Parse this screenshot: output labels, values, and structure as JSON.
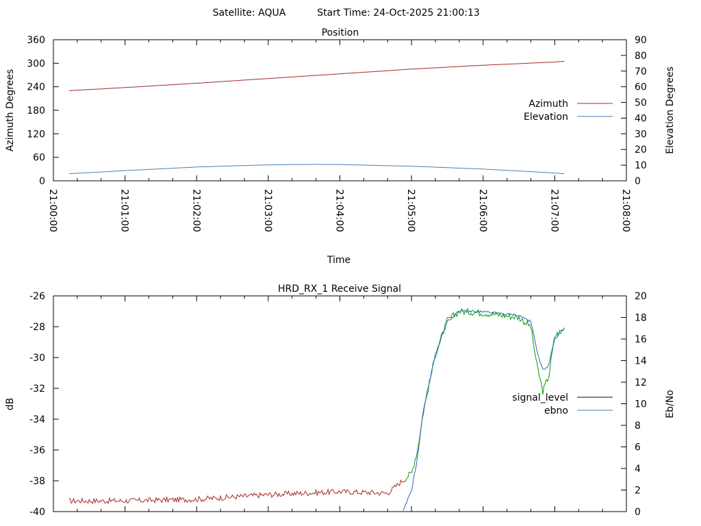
{
  "header": {
    "satellite_text": "Satellite: AQUA",
    "start_time_text": "Start Time: 24-Oct-2025 21:00:13"
  },
  "colors": {
    "azimuth": "#a52a2a",
    "elevation": "#4a7fb5",
    "signal_level_line": "#00a000",
    "ebno_line": "#3060c0",
    "signal_legend": "#000000",
    "ebno_legend": "#4a7fb5"
  },
  "chart_data": [
    {
      "type": "line",
      "title": "Position",
      "xlabel": "Time",
      "ylabel": "Azimuth Degrees",
      "y2label": "Elevation Degrees",
      "xlim": [
        "21:00:00",
        "21:08:00"
      ],
      "ylim": [
        0,
        360
      ],
      "y2lim": [
        0,
        90
      ],
      "x_ticks": [
        "21:00:00",
        "21:01:00",
        "21:02:00",
        "21:03:00",
        "21:04:00",
        "21:05:00",
        "21:06:00",
        "21:07:00",
        "21:08:00"
      ],
      "y_ticks": [
        "0",
        "60",
        "120",
        "180",
        "240",
        "300",
        "360"
      ],
      "y2_ticks": [
        "0",
        "10",
        "20",
        "30",
        "40",
        "50",
        "60",
        "70",
        "80",
        "90"
      ],
      "legend_position": "right",
      "series": [
        {
          "name": "Azimuth",
          "axis": "y",
          "x": [
            "21:00:13",
            "21:01:00",
            "21:02:00",
            "21:03:00",
            "21:04:00",
            "21:05:00",
            "21:06:00",
            "21:07:00",
            "21:07:08"
          ],
          "values": [
            230,
            238,
            249,
            261,
            273,
            285,
            295,
            303,
            305
          ]
        },
        {
          "name": "Elevation",
          "axis": "y2",
          "x": [
            "21:00:13",
            "21:01:00",
            "21:02:00",
            "21:03:00",
            "21:03:40",
            "21:04:00",
            "21:05:00",
            "21:06:00",
            "21:07:00",
            "21:07:08"
          ],
          "values": [
            4.5,
            6.5,
            8.8,
            10.2,
            10.5,
            10.4,
            9.3,
            7.5,
            5.0,
            4.5
          ]
        }
      ]
    },
    {
      "type": "line",
      "title": "HRD_RX_1 Receive Signal",
      "ylabel": "dB",
      "y2label": "Eb/No",
      "xlim": [
        "21:00:00",
        "21:08:00"
      ],
      "ylim": [
        -40,
        -26
      ],
      "y2lim": [
        0,
        20
      ],
      "y_ticks": [
        "-26",
        "-28",
        "-30",
        "-32",
        "-34",
        "-36",
        "-38",
        "-40"
      ],
      "y2_ticks": [
        "0",
        "2",
        "4",
        "6",
        "8",
        "10",
        "12",
        "14",
        "16",
        "18",
        "20"
      ],
      "legend_position": "right",
      "series": [
        {
          "name": "signal_level",
          "axis": "y",
          "x": [
            "21:00:13",
            "21:01:00",
            "21:02:00",
            "21:03:00",
            "21:04:00",
            "21:04:40",
            "21:05:00",
            "21:05:05",
            "21:05:10",
            "21:05:20",
            "21:05:30",
            "21:05:40",
            "21:06:00",
            "21:06:30",
            "21:06:40",
            "21:06:45",
            "21:06:50",
            "21:06:55",
            "21:07:00",
            "21:07:08"
          ],
          "values": [
            -39.3,
            -39.3,
            -39.2,
            -38.9,
            -38.7,
            -38.8,
            -37.5,
            -36.0,
            -33.5,
            -29.8,
            -27.6,
            -27.0,
            -27.1,
            -27.4,
            -28.0,
            -30.5,
            -32.2,
            -31.2,
            -28.6,
            -28.1
          ]
        },
        {
          "name": "ebno",
          "axis": "y2",
          "x": [
            "21:04:53",
            "21:05:00",
            "21:05:05",
            "21:05:10",
            "21:05:20",
            "21:05:30",
            "21:05:40",
            "21:06:00",
            "21:06:30",
            "21:06:40",
            "21:06:45",
            "21:06:50",
            "21:06:55",
            "21:07:00",
            "21:07:08"
          ],
          "values": [
            0,
            2.0,
            5.0,
            9.5,
            14.6,
            17.6,
            18.6,
            18.5,
            18.2,
            17.6,
            15.0,
            13.1,
            13.6,
            16.0,
            17.0
          ]
        }
      ]
    }
  ]
}
